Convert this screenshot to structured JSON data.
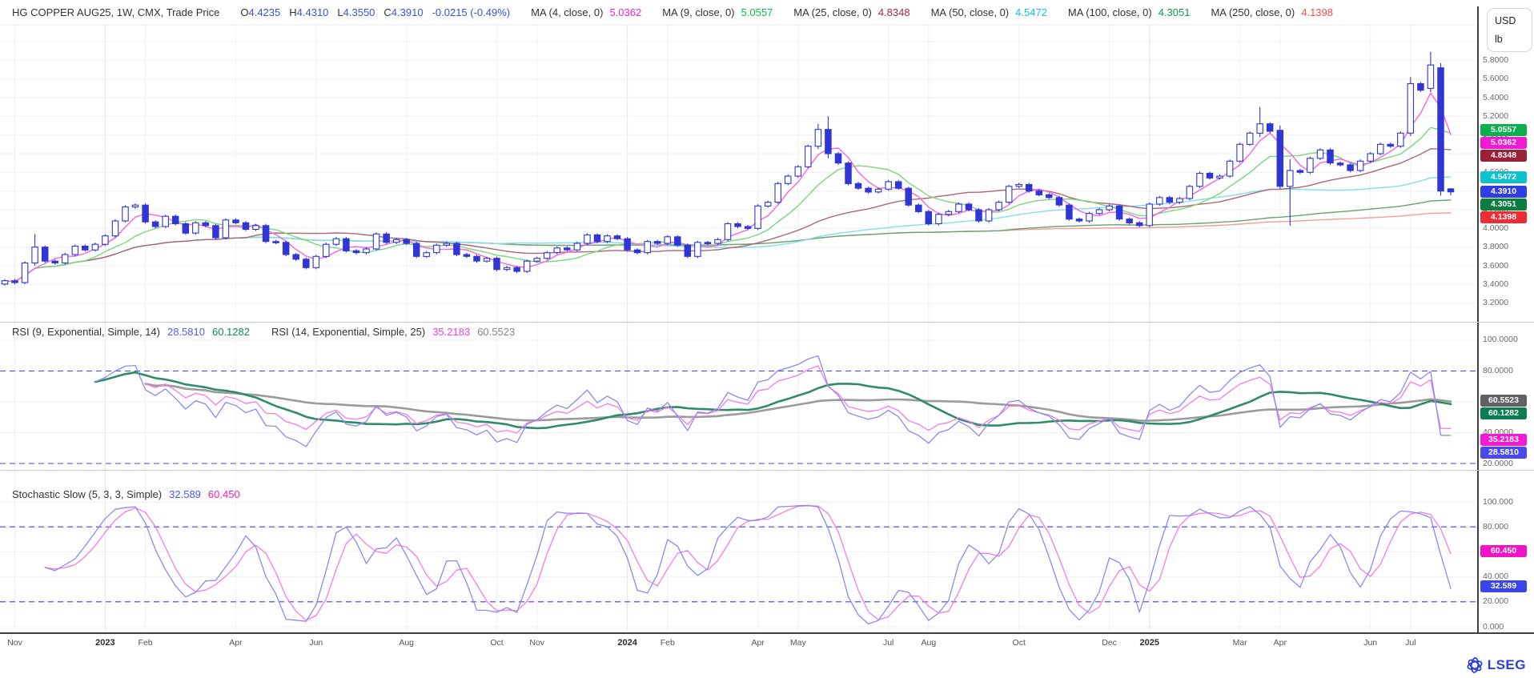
{
  "header": {
    "instrument": "HG COPPER AUG25, 1W, CMX, Trade Price",
    "ohlc": [
      {
        "label": "O",
        "value": "4.4235"
      },
      {
        "label": "H",
        "value": "4.4310"
      },
      {
        "label": "L",
        "value": "4.3550"
      },
      {
        "label": "C",
        "value": "4.3910"
      }
    ],
    "change": "-0.0215 (-0.49%)",
    "value_color": "#3c50e0",
    "ma_legend": [
      {
        "label": "MA (4, close, 0)",
        "value": "5.0362",
        "color": "#f224d8"
      },
      {
        "label": "MA (9, close, 0)",
        "value": "5.0557",
        "color": "#06c053"
      },
      {
        "label": "MA (25, close, 0)",
        "value": "4.8348",
        "color": "#a62742"
      },
      {
        "label": "MA (50, close, 0)",
        "value": "4.5472",
        "color": "#12c4d4"
      },
      {
        "label": "MA (100, close, 0)",
        "value": "4.3051",
        "color": "#0d9c52"
      },
      {
        "label": "MA (250, close, 0)",
        "value": "4.1398",
        "color": "#f84a4a"
      }
    ]
  },
  "units": {
    "currency": "USD",
    "unit": "lb"
  },
  "rsi_header": {
    "left_label": "RSI (9, Exponential, Simple, 14)",
    "left_values": [
      {
        "text": "28.5810",
        "color": "#5a58f8"
      },
      {
        "text": "60.1282",
        "color": "#0d8a55"
      }
    ],
    "right_label": "RSI (14, Exponential, Simple, 25)",
    "right_values": [
      {
        "text": "35.2183",
        "color": "#f53cee"
      },
      {
        "text": "60.5523",
        "color": "#85858a"
      }
    ]
  },
  "stoch_header": {
    "label": "Stochastic Slow (5, 3, 3, Simple)",
    "values": [
      {
        "text": "32.589",
        "color": "#4a56f2"
      },
      {
        "text": "60.450",
        "color": "#f21cc8"
      }
    ]
  },
  "price_axis": {
    "ticks": [
      "5.8000",
      "5.6000",
      "5.4000",
      "5.2000",
      "5.0000",
      "4.8000",
      "4.6000",
      "4.4000",
      "4.2000",
      "4.0000",
      "3.8000",
      "3.6000",
      "3.4000",
      "3.2000"
    ],
    "badges": [
      {
        "text": "5.0557",
        "value": 5.0557,
        "color": "#0ab04e"
      },
      {
        "text": "5.0362",
        "value": 5.0362,
        "color": "#f218d6"
      },
      {
        "text": "4.8348",
        "value": 4.8348,
        "color": "#9c1f38"
      },
      {
        "text": "4.5472",
        "value": 4.5472,
        "color": "#0cc2cd"
      },
      {
        "text": "4.3910",
        "value": 4.391,
        "color": "#2e3ee4"
      },
      {
        "text": "4.3051",
        "value": 4.3051,
        "color": "#0b7d3f"
      },
      {
        "text": "4.1398",
        "value": 4.1398,
        "color": "#ee2c34"
      }
    ]
  },
  "rsi_axis": {
    "ticks": [
      "100.0000",
      "80.0000",
      "60.0000",
      "40.0000",
      "20.0000"
    ],
    "badges": [
      {
        "text": "60.5523",
        "value": 60.5523,
        "color": "#5f6164"
      },
      {
        "text": "60.1282",
        "value": 60.1282,
        "color": "#0b7d52"
      },
      {
        "text": "35.2183",
        "value": 35.2183,
        "color": "#f21ad8"
      },
      {
        "text": "28.5810",
        "value": 28.581,
        "color": "#4a48f2"
      }
    ]
  },
  "stoch_axis": {
    "ticks": [
      "100.000",
      "80.000",
      "60.000",
      "40.000",
      "20.000",
      "0.000"
    ],
    "badges": [
      {
        "text": "60.450",
        "value": 60.45,
        "color": "#f213c6"
      },
      {
        "text": "32.589",
        "value": 32.589,
        "color": "#3a46ec"
      }
    ]
  },
  "time_axis": {
    "labels": [
      {
        "text": "Nov",
        "week": 1,
        "year": false
      },
      {
        "text": "2023",
        "week": 10,
        "year": true
      },
      {
        "text": "Feb",
        "week": 14,
        "year": false
      },
      {
        "text": "Apr",
        "week": 23,
        "year": false
      },
      {
        "text": "Jun",
        "week": 31,
        "year": false
      },
      {
        "text": "Aug",
        "week": 40,
        "year": false
      },
      {
        "text": "Oct",
        "week": 49,
        "year": false
      },
      {
        "text": "Nov",
        "week": 53,
        "year": false
      },
      {
        "text": "2024",
        "week": 62,
        "year": true
      },
      {
        "text": "Feb",
        "week": 66,
        "year": false
      },
      {
        "text": "Apr",
        "week": 75,
        "year": false
      },
      {
        "text": "May",
        "week": 79,
        "year": false
      },
      {
        "text": "Jul",
        "week": 88,
        "year": false
      },
      {
        "text": "Aug",
        "week": 92,
        "year": false
      },
      {
        "text": "Oct",
        "week": 101,
        "year": false
      },
      {
        "text": "Dec",
        "week": 110,
        "year": false
      },
      {
        "text": "2025",
        "week": 114,
        "year": true
      },
      {
        "text": "Mar",
        "week": 123,
        "year": false
      },
      {
        "text": "Apr",
        "week": 127,
        "year": false
      },
      {
        "text": "Jun",
        "week": 136,
        "year": false
      },
      {
        "text": "Jul",
        "week": 140,
        "year": false
      }
    ]
  },
  "branding": {
    "logo": "LSEG",
    "color": "#2b3fe0"
  },
  "chart_data": {
    "type": "candlestick",
    "title": "HG COPPER AUG25, 1W, CMX, Trade Price with MA(4/9/25/50/100/250), RSI and Stochastic Slow sub-panels",
    "interval": "weekly",
    "x_range": [
      "Nov 2022",
      "Jul 2025"
    ],
    "closes": [
      3.44,
      3.42,
      3.63,
      3.8,
      3.65,
      3.63,
      3.72,
      3.81,
      3.77,
      3.83,
      3.92,
      4.08,
      4.23,
      4.25,
      4.07,
      4.02,
      4.13,
      4.05,
      3.95,
      4.06,
      4.03,
      3.9,
      4.09,
      4.06,
      3.99,
      4.03,
      3.86,
      3.85,
      3.72,
      3.67,
      3.58,
      3.7,
      3.83,
      3.89,
      3.76,
      3.74,
      3.78,
      3.94,
      3.85,
      3.88,
      3.84,
      3.7,
      3.74,
      3.82,
      3.84,
      3.72,
      3.7,
      3.65,
      3.68,
      3.56,
      3.58,
      3.54,
      3.65,
      3.68,
      3.74,
      3.79,
      3.77,
      3.84,
      3.93,
      3.86,
      3.92,
      3.89,
      3.77,
      3.74,
      3.86,
      3.84,
      3.91,
      3.82,
      3.7,
      3.85,
      3.84,
      3.88,
      4.05,
      4.02,
      4.0,
      4.24,
      4.28,
      4.48,
      4.56,
      4.66,
      4.88,
      5.06,
      4.8,
      4.7,
      4.48,
      4.43,
      4.39,
      4.42,
      4.5,
      4.43,
      4.25,
      4.18,
      4.05,
      4.15,
      4.18,
      4.26,
      4.2,
      4.08,
      4.2,
      4.28,
      4.45,
      4.47,
      4.4,
      4.36,
      4.33,
      4.25,
      4.1,
      4.08,
      4.16,
      4.2,
      4.24,
      4.1,
      4.06,
      4.03,
      4.26,
      4.33,
      4.28,
      4.32,
      4.45,
      4.59,
      4.54,
      4.56,
      4.72,
      4.9,
      5.02,
      5.12,
      5.04,
      4.45,
      4.62,
      4.6,
      4.75,
      4.84,
      4.7,
      4.68,
      4.62,
      4.72,
      4.8,
      4.9,
      4.88,
      5.02,
      5.55,
      5.48,
      5.75,
      4.4,
      4.391
    ],
    "special_ohlc": {
      "3": [
        3.63,
        3.94,
        3.6,
        3.8
      ],
      "81": [
        4.88,
        5.12,
        4.85,
        5.06
      ],
      "82": [
        5.06,
        5.2,
        4.75,
        4.8
      ],
      "125": [
        5.02,
        5.3,
        4.98,
        5.12
      ],
      "127": [
        5.05,
        5.1,
        4.42,
        4.45
      ],
      "128": [
        4.45,
        4.74,
        4.03,
        4.62
      ],
      "140": [
        5.02,
        5.62,
        4.99,
        5.55
      ],
      "142": [
        5.5,
        5.89,
        5.46,
        5.75
      ],
      "143": [
        5.72,
        5.77,
        4.35,
        4.4
      ],
      "144": [
        4.4235,
        4.431,
        4.355,
        4.391
      ]
    },
    "ma_periods": [
      4,
      9,
      25,
      50,
      100,
      250
    ],
    "price_ylim": [
      3.0,
      6.18
    ],
    "price_grid_step": 0.2,
    "rsi": {
      "fast_period": 9,
      "fast_smooth": 14,
      "slow_period": 14,
      "slow_smooth": 25,
      "ylim": [
        16.9,
        110.9
      ],
      "guides": [
        80,
        20
      ],
      "grid": [
        100,
        80,
        60,
        40,
        20
      ]
    },
    "stoch": {
      "k": 5,
      "slowing": 3,
      "d": 3,
      "ylim": [
        -3.2,
        124.4
      ],
      "guides": [
        80,
        20
      ],
      "grid": [
        100,
        80,
        60,
        40,
        20,
        0
      ]
    },
    "colors": {
      "candle": "#3036d6",
      "ma4": "#f763e3",
      "ma9": "#7bd77b",
      "ma25": "#ab6876",
      "ma50": "#84dded",
      "ma100": "#67a374",
      "ma250": "#f59e98",
      "rsi_fast": "#8a8af2",
      "rsi_fast_smooth": "#2f8c68",
      "rsi_slow": "#f87ae8",
      "rsi_slow_smooth": "#9b9b9b",
      "stoch_k": "#8a8af2",
      "stoch_d": "#f87ae8",
      "guide": "#4343e8",
      "grid": "#f0f0f3",
      "grid_year": "#e3e3ea"
    }
  }
}
